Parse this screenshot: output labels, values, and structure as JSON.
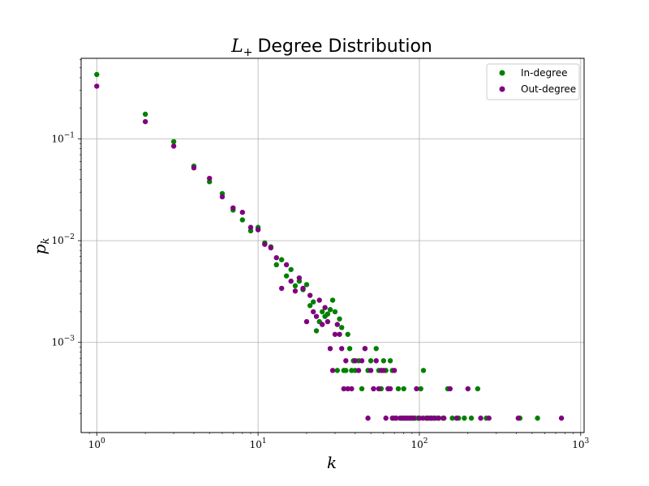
{
  "chart_data": {
    "type": "scatter",
    "title_math": "L",
    "title_sub": "+",
    "title_text": "Degree Distribution",
    "xlabel": "k",
    "ylabel_main": "p",
    "ylabel_sub": "k",
    "xscale": "log",
    "yscale": "log",
    "xlim": [
      0.8,
      1050
    ],
    "ylim": [
      0.00013,
      0.62
    ],
    "grid": true,
    "legend_position": "upper right",
    "x_ticks": [
      {
        "value": 1,
        "base": "10",
        "exp": "0"
      },
      {
        "value": 10,
        "base": "10",
        "exp": "1"
      },
      {
        "value": 100,
        "base": "10",
        "exp": "2"
      },
      {
        "value": 1000,
        "base": "10",
        "exp": "3"
      }
    ],
    "y_ticks": [
      {
        "value": 0.1,
        "base": "10",
        "exp": "−1"
      },
      {
        "value": 0.01,
        "base": "10",
        "exp": "−2"
      },
      {
        "value": 0.001,
        "base": "10",
        "exp": "−3"
      }
    ],
    "series": [
      {
        "name": "In-degree",
        "color": "#008000",
        "points": [
          [
            1,
            0.43
          ],
          [
            2,
            0.175
          ],
          [
            3,
            0.094
          ],
          [
            4,
            0.054
          ],
          [
            5,
            0.038
          ],
          [
            6,
            0.029
          ],
          [
            7,
            0.02
          ],
          [
            8,
            0.016
          ],
          [
            9,
            0.0125
          ],
          [
            10,
            0.0135
          ],
          [
            11,
            0.0095
          ],
          [
            12,
            0.0087
          ],
          [
            13,
            0.0058
          ],
          [
            14,
            0.0065
          ],
          [
            15,
            0.0045
          ],
          [
            16,
            0.0052
          ],
          [
            17,
            0.0036
          ],
          [
            18,
            0.004
          ],
          [
            19,
            0.0033
          ],
          [
            20,
            0.0037
          ],
          [
            21,
            0.0023
          ],
          [
            22,
            0.0025
          ],
          [
            23,
            0.0013
          ],
          [
            24,
            0.0016
          ],
          [
            25,
            0.002
          ],
          [
            26,
            0.0018
          ],
          [
            27,
            0.0019
          ],
          [
            28,
            0.0021
          ],
          [
            29,
            0.0026
          ],
          [
            30,
            0.002
          ],
          [
            31,
            0.00053
          ],
          [
            32,
            0.0017
          ],
          [
            33,
            0.0014
          ],
          [
            34,
            0.00053
          ],
          [
            35,
            0.00053
          ],
          [
            36,
            0.0012
          ],
          [
            37,
            0.00087
          ],
          [
            38,
            0.00053
          ],
          [
            39,
            0.00066
          ],
          [
            40,
            0.00053
          ],
          [
            42,
            0.00066
          ],
          [
            44,
            0.00035
          ],
          [
            46,
            0.00087
          ],
          [
            48,
            0.00053
          ],
          [
            50,
            0.00066
          ],
          [
            52,
            0.00035
          ],
          [
            54,
            0.00087
          ],
          [
            56,
            0.00053
          ],
          [
            58,
            0.00035
          ],
          [
            60,
            0.00066
          ],
          [
            62,
            0.00053
          ],
          [
            64,
            0.00035
          ],
          [
            66,
            0.00066
          ],
          [
            68,
            0.00053
          ],
          [
            70,
            0.00018
          ],
          [
            74,
            0.00035
          ],
          [
            78,
            0.00018
          ],
          [
            80,
            0.00035
          ],
          [
            82,
            0.00018
          ],
          [
            86,
            0.00018
          ],
          [
            90,
            0.00018
          ],
          [
            94,
            0.00018
          ],
          [
            98,
            0.00018
          ],
          [
            102,
            0.00035
          ],
          [
            106,
            0.00053
          ],
          [
            110,
            0.00018
          ],
          [
            115,
            0.00018
          ],
          [
            120,
            0.00018
          ],
          [
            125,
            0.00018
          ],
          [
            130,
            0.00018
          ],
          [
            140,
            0.00018
          ],
          [
            150,
            0.00035
          ],
          [
            160,
            0.00018
          ],
          [
            175,
            0.00018
          ],
          [
            190,
            0.00018
          ],
          [
            210,
            0.00018
          ],
          [
            230,
            0.00035
          ],
          [
            260,
            0.00018
          ],
          [
            420,
            0.00018
          ],
          [
            540,
            0.00018
          ]
        ]
      },
      {
        "name": "Out-degree",
        "color": "#800080",
        "points": [
          [
            1,
            0.33
          ],
          [
            2,
            0.148
          ],
          [
            3,
            0.085
          ],
          [
            4,
            0.052
          ],
          [
            5,
            0.041
          ],
          [
            6,
            0.027
          ],
          [
            7,
            0.021
          ],
          [
            8,
            0.019
          ],
          [
            9,
            0.0135
          ],
          [
            10,
            0.0128
          ],
          [
            11,
            0.0092
          ],
          [
            12,
            0.0085
          ],
          [
            13,
            0.0068
          ],
          [
            14,
            0.0034
          ],
          [
            15,
            0.0058
          ],
          [
            16,
            0.004
          ],
          [
            17,
            0.0032
          ],
          [
            18,
            0.0043
          ],
          [
            19,
            0.0034
          ],
          [
            20,
            0.0016
          ],
          [
            21,
            0.0029
          ],
          [
            22,
            0.002
          ],
          [
            23,
            0.0018
          ],
          [
            24,
            0.0026
          ],
          [
            25,
            0.0015
          ],
          [
            26,
            0.0022
          ],
          [
            27,
            0.0016
          ],
          [
            28,
            0.00087
          ],
          [
            29,
            0.00053
          ],
          [
            30,
            0.0012
          ],
          [
            31,
            0.0015
          ],
          [
            32,
            0.0012
          ],
          [
            33,
            0.00087
          ],
          [
            34,
            0.00035
          ],
          [
            35,
            0.00066
          ],
          [
            36,
            0.00035
          ],
          [
            38,
            0.00035
          ],
          [
            40,
            0.00066
          ],
          [
            42,
            0.00053
          ],
          [
            44,
            0.00066
          ],
          [
            46,
            0.00087
          ],
          [
            48,
            0.00018
          ],
          [
            50,
            0.00053
          ],
          [
            52,
            0.00035
          ],
          [
            54,
            0.00066
          ],
          [
            56,
            0.00035
          ],
          [
            58,
            0.00053
          ],
          [
            60,
            0.00053
          ],
          [
            62,
            0.00018
          ],
          [
            64,
            0.00035
          ],
          [
            66,
            0.00035
          ],
          [
            68,
            0.00018
          ],
          [
            70,
            0.00053
          ],
          [
            72,
            0.00018
          ],
          [
            76,
            0.00018
          ],
          [
            80,
            0.00018
          ],
          [
            84,
            0.00018
          ],
          [
            88,
            0.00018
          ],
          [
            92,
            0.00018
          ],
          [
            96,
            0.00035
          ],
          [
            100,
            0.00018
          ],
          [
            105,
            0.00018
          ],
          [
            112,
            0.00018
          ],
          [
            118,
            0.00018
          ],
          [
            124,
            0.00018
          ],
          [
            132,
            0.00018
          ],
          [
            142,
            0.00018
          ],
          [
            155,
            0.00035
          ],
          [
            170,
            0.00018
          ],
          [
            200,
            0.00035
          ],
          [
            240,
            0.00018
          ],
          [
            270,
            0.00018
          ],
          [
            410,
            0.00018
          ],
          [
            760,
            0.00018
          ]
        ]
      }
    ]
  }
}
